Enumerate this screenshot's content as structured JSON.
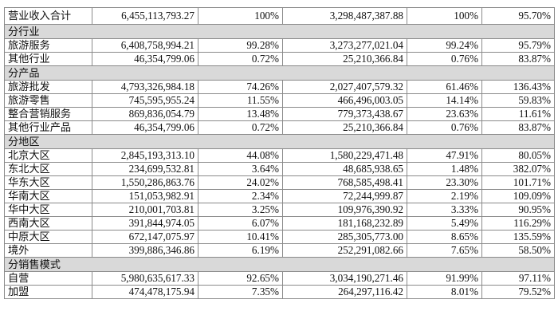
{
  "total": {
    "label": "营业收入合计",
    "revenue": "6,455,113,793.27",
    "revenue_pct": "100%",
    "cost": "3,298,487,387.88",
    "cost_pct": "100%",
    "yoy": "95.70%"
  },
  "sections": [
    {
      "title": "分行业",
      "rows": [
        {
          "label": "旅游服务",
          "revenue": "6,408,758,994.21",
          "revenue_pct": "99.28%",
          "cost": "3,273,277,021.04",
          "cost_pct": "99.24%",
          "yoy": "95.79%"
        },
        {
          "label": "其他行业",
          "revenue": "46,354,799.06",
          "revenue_pct": "0.72%",
          "cost": "25,210,366.84",
          "cost_pct": "0.76%",
          "yoy": "83.87%"
        }
      ]
    },
    {
      "title": "分产品",
      "rows": [
        {
          "label": "旅游批发",
          "revenue": "4,793,326,984.18",
          "revenue_pct": "74.26%",
          "cost": "2,027,407,579.32",
          "cost_pct": "61.46%",
          "yoy": "136.43%"
        },
        {
          "label": "旅游零售",
          "revenue": "745,595,955.24",
          "revenue_pct": "11.55%",
          "cost": "466,496,003.05",
          "cost_pct": "14.14%",
          "yoy": "59.83%"
        },
        {
          "label": "整合营销服务",
          "revenue": "869,836,054.79",
          "revenue_pct": "13.48%",
          "cost": "779,373,438.67",
          "cost_pct": "23.63%",
          "yoy": "11.61%"
        },
        {
          "label": "其他行业产品",
          "revenue": "46,354,799.06",
          "revenue_pct": "0.72%",
          "cost": "25,210,366.84",
          "cost_pct": "0.76%",
          "yoy": "83.87%"
        }
      ]
    },
    {
      "title": "分地区",
      "rows": [
        {
          "label": "北京大区",
          "revenue": "2,845,193,313.10",
          "revenue_pct": "44.08%",
          "cost": "1,580,229,471.48",
          "cost_pct": "47.91%",
          "yoy": "80.05%"
        },
        {
          "label": "东北大区",
          "revenue": "234,699,532.81",
          "revenue_pct": "3.64%",
          "cost": "48,685,938.65",
          "cost_pct": "1.48%",
          "yoy": "382.07%"
        },
        {
          "label": "华东大区",
          "revenue": "1,550,286,863.76",
          "revenue_pct": "24.02%",
          "cost": "768,585,498.41",
          "cost_pct": "23.30%",
          "yoy": "101.71%"
        },
        {
          "label": "华南大区",
          "revenue": "151,053,982.91",
          "revenue_pct": "2.34%",
          "cost": "72,244,999.87",
          "cost_pct": "2.19%",
          "yoy": "109.09%"
        },
        {
          "label": "华中大区",
          "revenue": "210,001,703.81",
          "revenue_pct": "3.25%",
          "cost": "109,976,390.92",
          "cost_pct": "3.33%",
          "yoy": "90.95%"
        },
        {
          "label": "西南大区",
          "revenue": "391,844,974.05",
          "revenue_pct": "6.07%",
          "cost": "181,168,232.89",
          "cost_pct": "5.49%",
          "yoy": "116.29%"
        },
        {
          "label": "中原大区",
          "revenue": "672,147,075.97",
          "revenue_pct": "10.41%",
          "cost": "285,305,773.00",
          "cost_pct": "8.65%",
          "yoy": "135.59%"
        },
        {
          "label": "境外",
          "revenue": "399,886,346.86",
          "revenue_pct": "6.19%",
          "cost": "252,291,082.66",
          "cost_pct": "7.65%",
          "yoy": "58.50%"
        }
      ]
    },
    {
      "title": "分销售模式",
      "rows": [
        {
          "label": "自营",
          "revenue": "5,980,635,617.33",
          "revenue_pct": "92.65%",
          "cost": "3,034,190,271.46",
          "cost_pct": "91.99%",
          "yoy": "97.11%"
        },
        {
          "label": "加盟",
          "revenue": "474,478,175.94",
          "revenue_pct": "7.35%",
          "cost": "264,297,116.42",
          "cost_pct": "8.01%",
          "yoy": "79.52%"
        }
      ]
    }
  ]
}
